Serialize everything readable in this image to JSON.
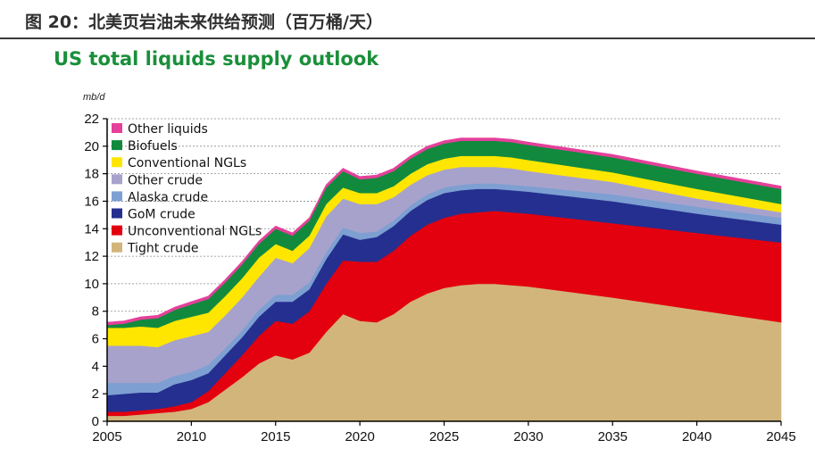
{
  "figure": {
    "caption": "图 20：北美页岩油未来供给预测（百万桶/天）"
  },
  "chart_data": {
    "type": "area",
    "stacked": true,
    "title": "US total liquids supply outlook",
    "ylabel": "mb/d",
    "xlabel": "",
    "xlim": [
      2005,
      2045
    ],
    "ylim": [
      0,
      22
    ],
    "xticks": [
      2005,
      2010,
      2015,
      2020,
      2025,
      2030,
      2035,
      2040,
      2045
    ],
    "yticks": [
      0,
      2,
      4,
      6,
      8,
      10,
      12,
      14,
      16,
      18,
      20,
      22
    ],
    "grid": "horizontal dashed",
    "legend_position": "top-left",
    "x": [
      2005,
      2006,
      2007,
      2008,
      2009,
      2010,
      2011,
      2012,
      2013,
      2014,
      2015,
      2016,
      2017,
      2018,
      2019,
      2020,
      2021,
      2022,
      2023,
      2024,
      2025,
      2026,
      2027,
      2028,
      2029,
      2030,
      2035,
      2040,
      2045
    ],
    "series": [
      {
        "name": "Tight crude",
        "color": "#d2b57a",
        "values": [
          0.4,
          0.4,
          0.5,
          0.6,
          0.7,
          0.9,
          1.4,
          2.3,
          3.2,
          4.2,
          4.8,
          4.5,
          5.0,
          6.5,
          7.8,
          7.3,
          7.2,
          7.8,
          8.7,
          9.3,
          9.7,
          9.9,
          10.0,
          10.0,
          9.9,
          9.8,
          9.0,
          8.1,
          7.2
        ]
      },
      {
        "name": "Unconventional NGLs",
        "color": "#e3000f",
        "values": [
          0.3,
          0.3,
          0.3,
          0.3,
          0.4,
          0.5,
          0.8,
          1.2,
          1.6,
          2.0,
          2.5,
          2.6,
          3.0,
          3.5,
          3.9,
          4.3,
          4.4,
          4.6,
          4.8,
          5.0,
          5.1,
          5.2,
          5.2,
          5.3,
          5.3,
          5.3,
          5.4,
          5.6,
          5.8
        ]
      },
      {
        "name": "GoM crude",
        "color": "#252f8f",
        "values": [
          1.2,
          1.3,
          1.3,
          1.2,
          1.6,
          1.6,
          1.3,
          1.3,
          1.3,
          1.4,
          1.4,
          1.6,
          1.6,
          1.8,
          1.9,
          1.6,
          1.8,
          1.8,
          1.8,
          1.8,
          1.8,
          1.7,
          1.7,
          1.6,
          1.6,
          1.6,
          1.6,
          1.4,
          1.3
        ]
      },
      {
        "name": "Alaska crude",
        "color": "#7d9fd2",
        "values": [
          0.9,
          0.8,
          0.7,
          0.7,
          0.6,
          0.6,
          0.6,
          0.5,
          0.5,
          0.5,
          0.5,
          0.5,
          0.5,
          0.5,
          0.5,
          0.5,
          0.4,
          0.4,
          0.4,
          0.4,
          0.4,
          0.4,
          0.4,
          0.4,
          0.4,
          0.4,
          0.5,
          0.5,
          0.5
        ]
      },
      {
        "name": "Other crude",
        "color": "#a7a2cc",
        "values": [
          2.7,
          2.7,
          2.7,
          2.6,
          2.6,
          2.6,
          2.4,
          2.4,
          2.4,
          2.4,
          2.7,
          2.3,
          2.5,
          2.6,
          2.1,
          2.1,
          2.0,
          1.7,
          1.5,
          1.4,
          1.3,
          1.3,
          1.2,
          1.2,
          1.2,
          1.1,
          0.9,
          0.6,
          0.4
        ]
      },
      {
        "name": "Conventional NGLs",
        "color": "#ffe600",
        "values": [
          1.3,
          1.3,
          1.4,
          1.4,
          1.4,
          1.4,
          1.4,
          1.4,
          1.4,
          1.4,
          1.0,
          0.9,
          0.9,
          0.9,
          0.8,
          0.8,
          0.8,
          0.8,
          0.8,
          0.8,
          0.8,
          0.8,
          0.8,
          0.8,
          0.8,
          0.8,
          0.7,
          0.7,
          0.6
        ]
      },
      {
        "name": "Biofuels",
        "color": "#118a3e",
        "values": [
          0.2,
          0.3,
          0.5,
          0.7,
          0.8,
          0.9,
          1.0,
          1.0,
          1.0,
          1.0,
          1.1,
          1.1,
          1.1,
          1.2,
          1.2,
          1.0,
          1.1,
          1.1,
          1.1,
          1.1,
          1.1,
          1.1,
          1.1,
          1.1,
          1.1,
          1.1,
          1.1,
          1.1,
          1.1
        ]
      },
      {
        "name": "Other liquids",
        "color": "#e5409a",
        "values": [
          0.2,
          0.2,
          0.2,
          0.2,
          0.2,
          0.2,
          0.2,
          0.2,
          0.2,
          0.2,
          0.2,
          0.2,
          0.2,
          0.2,
          0.2,
          0.2,
          0.2,
          0.2,
          0.2,
          0.2,
          0.2,
          0.2,
          0.2,
          0.2,
          0.2,
          0.2,
          0.2,
          0.2,
          0.2
        ]
      }
    ],
    "legend_order": [
      "Other liquids",
      "Biofuels",
      "Conventional NGLs",
      "Other crude",
      "Alaska crude",
      "GoM crude",
      "Unconventional NGLs",
      "Tight crude"
    ]
  }
}
